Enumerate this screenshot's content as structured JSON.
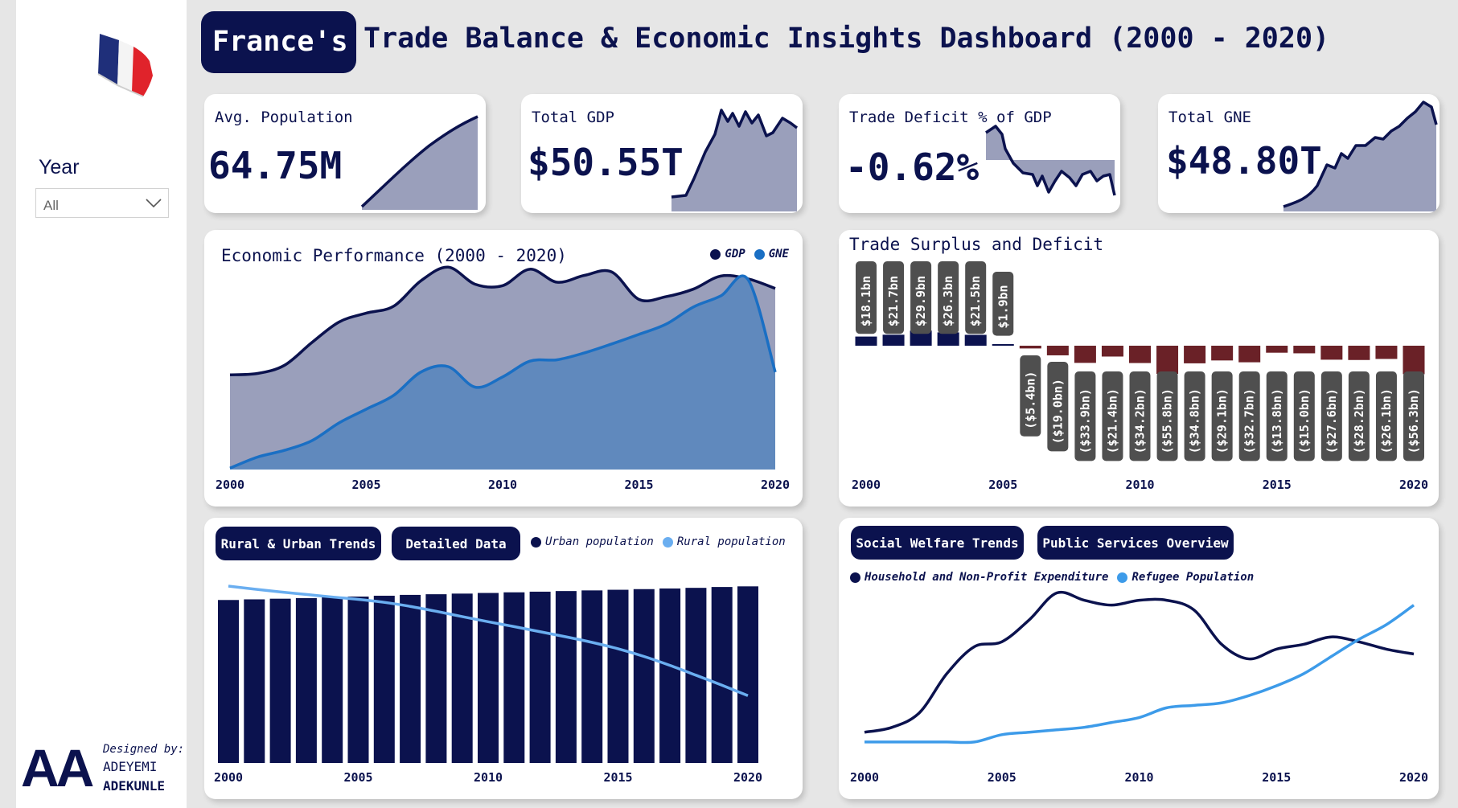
{
  "header": {
    "title_highlight": "France's",
    "title_rest": "Trade Balance & Economic Insights Dashboard (2000 - 2020)"
  },
  "filter": {
    "label": "Year",
    "selected": "All"
  },
  "credit": {
    "mark": "AA",
    "prefix": "Designed by:",
    "first_name": "ADEYEMI",
    "last_name": "ADEKUNLE"
  },
  "colors": {
    "navy": "#0b124e",
    "slate": "#9a9fbb",
    "blue": "#1a6fc4",
    "blue_fill": "#6089bd",
    "light_blue": "#6aaef0",
    "deficit": "#6a2127",
    "label_box": "#4f4f4f"
  },
  "kpis": [
    {
      "label": "Avg. Population",
      "value": "64.75M"
    },
    {
      "label": "Total GDP",
      "value": "$50.55T"
    },
    {
      "label": "Trade Deficit % of GDP",
      "value": "-0.62%"
    },
    {
      "label": "Total GNE",
      "value": "$48.80T"
    }
  ],
  "panels": {
    "economic": {
      "title": "Economic Performance (2000 - 2020)"
    },
    "trade": {
      "title": "Trade Surplus and Deficit"
    },
    "rural": {
      "tabs": [
        "Rural & Urban Trends",
        "Detailed Data"
      ]
    },
    "welfare": {
      "tabs": [
        "Social Welfare Trends",
        "Public Services Overview"
      ]
    }
  },
  "chart_data": [
    {
      "type": "area",
      "title": "Economic Performance (2000 - 2020)",
      "x": [
        2000,
        2001,
        2002,
        2003,
        2004,
        2005,
        2006,
        2007,
        2008,
        2009,
        2010,
        2011,
        2012,
        2013,
        2014,
        2015,
        2016,
        2017,
        2018,
        2019,
        2020
      ],
      "x_ticks": [
        "2000",
        "2005",
        "2010",
        "2015",
        "2020"
      ],
      "ylim": [
        0,
        3.0
      ],
      "series": [
        {
          "name": "GDP",
          "values": [
            1.38,
            1.4,
            1.52,
            1.85,
            2.15,
            2.28,
            2.38,
            2.75,
            2.95,
            2.7,
            2.68,
            2.92,
            2.73,
            2.83,
            2.88,
            2.48,
            2.52,
            2.63,
            2.82,
            2.78,
            2.64
          ]
        },
        {
          "name": "GNE",
          "values": [
            0.02,
            0.18,
            0.28,
            0.42,
            0.68,
            0.88,
            1.08,
            1.42,
            1.5,
            1.2,
            1.35,
            1.58,
            1.6,
            1.7,
            1.83,
            1.97,
            2.12,
            2.37,
            2.53,
            2.77,
            1.42
          ]
        }
      ]
    },
    {
      "type": "bar",
      "title": "Trade Surplus and Deficit",
      "categories": [
        "2000",
        "2001",
        "2002",
        "2003",
        "2004",
        "2005",
        "2006",
        "2007",
        "2008",
        "2009",
        "2010",
        "2011",
        "2012",
        "2013",
        "2014",
        "2015",
        "2016",
        "2017",
        "2018",
        "2019",
        "2020"
      ],
      "x_ticks": [
        "2000",
        "2005",
        "2010",
        "2015",
        "2020"
      ],
      "values": [
        18.1,
        21.7,
        29.9,
        26.3,
        21.5,
        1.9,
        -5.4,
        -19.0,
        -33.9,
        -21.4,
        -34.2,
        -55.8,
        -34.8,
        -29.1,
        -32.7,
        -13.8,
        -15.0,
        -27.6,
        -28.2,
        -26.1,
        -56.3
      ],
      "labels": [
        "$18.1bn",
        "$21.7bn",
        "$29.9bn",
        "$26.3bn",
        "$21.5bn",
        "$1.9bn",
        "($5.4bn)",
        "($19.0bn)",
        "($33.9bn)",
        "($21.4bn)",
        "($34.2bn)",
        "($55.8bn)",
        "($34.8bn)",
        "($29.1bn)",
        "($32.7bn)",
        "($13.8bn)",
        "($15.0bn)",
        "($27.6bn)",
        "($28.2bn)",
        "($26.1bn)",
        "($56.3bn)"
      ]
    },
    {
      "type": "bar",
      "title": "",
      "x": [
        2000,
        2001,
        2002,
        2003,
        2004,
        2005,
        2006,
        2007,
        2008,
        2009,
        2010,
        2011,
        2012,
        2013,
        2014,
        2015,
        2016,
        2017,
        2018,
        2019,
        2020
      ],
      "x_ticks": [
        "2000",
        "2005",
        "2010",
        "2015",
        "2020"
      ],
      "ylim": [
        0,
        100
      ],
      "series": [
        {
          "name": "Urban population",
          "values": [
            76.5,
            76.8,
            77.1,
            77.4,
            77.8,
            78.1,
            78.5,
            78.9,
            79.2,
            79.5,
            79.8,
            80.1,
            80.4,
            80.7,
            81.0,
            81.3,
            81.6,
            81.9,
            82.2,
            82.6,
            82.9
          ]
        },
        {
          "name": "Rural population",
          "values": [
            83.0,
            81.6,
            80.3,
            79.1,
            77.9,
            76.8,
            75.4,
            73.5,
            71.2,
            68.7,
            66.3,
            64.0,
            61.6,
            59.2,
            56.6,
            53.6,
            50.0,
            45.8,
            41.2,
            36.5,
            31.6
          ]
        }
      ]
    },
    {
      "type": "line",
      "title": "",
      "x": [
        2000,
        2001,
        2002,
        2003,
        2004,
        2005,
        2006,
        2007,
        2008,
        2009,
        2010,
        2011,
        2012,
        2013,
        2014,
        2015,
        2016,
        2017,
        2018,
        2019,
        2020
      ],
      "x_ticks": [
        "2000",
        "2005",
        "2010",
        "2015",
        "2020"
      ],
      "ylim": [
        0,
        100
      ],
      "series": [
        {
          "name": "Household and Non-Profit Expenditure",
          "values": [
            6,
            8,
            14,
            30,
            41,
            43,
            52,
            63,
            60,
            58,
            60,
            60,
            56,
            42,
            36,
            40,
            42,
            45,
            43,
            40,
            38
          ]
        },
        {
          "name": "Refugee Population",
          "values": [
            2,
            2,
            2,
            2,
            2,
            5,
            6,
            7,
            8,
            10,
            12,
            16,
            17,
            18,
            21,
            25,
            30,
            37,
            44,
            50,
            58
          ]
        }
      ]
    }
  ]
}
